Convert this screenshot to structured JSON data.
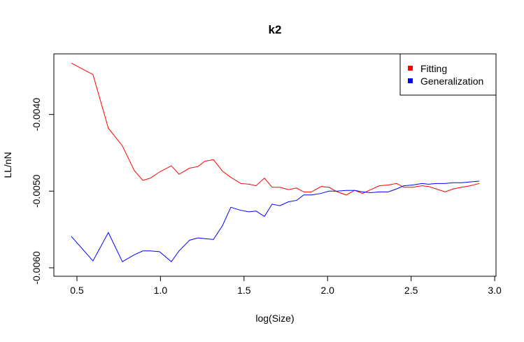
{
  "chart_data": {
    "type": "line",
    "title": "k2",
    "x_label": "log(Size)",
    "y_label": "LL/nN",
    "x": [
      0.466,
      0.596,
      0.688,
      0.772,
      0.843,
      0.894,
      0.94,
      0.994,
      1.065,
      1.111,
      1.174,
      1.224,
      1.266,
      1.317,
      1.371,
      1.421,
      1.48,
      1.53,
      1.572,
      1.622,
      1.668,
      1.714,
      1.765,
      1.815,
      1.857,
      1.903,
      1.961,
      2.008,
      2.058,
      2.112,
      2.162,
      2.209,
      2.259,
      2.309,
      2.363,
      2.414,
      2.456,
      2.51,
      2.564,
      2.606,
      2.648,
      2.703,
      2.753,
      2.803,
      2.853,
      2.908
    ],
    "series": [
      {
        "name": "Fitting",
        "color": "#ff0000",
        "values": [
          -0.00333,
          -0.00348,
          -0.00418,
          -0.00441,
          -0.00473,
          -0.00486,
          -0.00483,
          -0.00475,
          -0.00467,
          -0.00478,
          -0.0047,
          -0.00468,
          -0.00461,
          -0.00459,
          -0.00474,
          -0.00482,
          -0.0049,
          -0.00491,
          -0.00493,
          -0.00483,
          -0.00495,
          -0.00495,
          -0.00498,
          -0.00496,
          -0.00501,
          -0.00501,
          -0.00494,
          -0.00495,
          -0.00501,
          -0.00505,
          -0.00499,
          -0.00503,
          -0.00498,
          -0.00493,
          -0.00492,
          -0.0049,
          -0.00495,
          -0.00495,
          -0.00493,
          -0.00494,
          -0.00497,
          -0.00501,
          -0.00497,
          -0.00495,
          -0.00493,
          -0.0049
        ]
      },
      {
        "name": "Generalization",
        "color": "#0000ff",
        "values": [
          -0.00559,
          -0.00591,
          -0.00554,
          -0.00592,
          -0.00583,
          -0.00578,
          -0.00578,
          -0.00579,
          -0.00592,
          -0.00578,
          -0.00564,
          -0.00561,
          -0.00562,
          -0.00563,
          -0.00545,
          -0.00521,
          -0.00525,
          -0.00527,
          -0.00526,
          -0.00533,
          -0.00517,
          -0.00519,
          -0.00514,
          -0.00512,
          -0.00505,
          -0.00505,
          -0.00503,
          -0.005,
          -0.005,
          -0.00499,
          -0.00499,
          -0.00501,
          -0.00502,
          -0.00501,
          -0.00501,
          -0.00497,
          -0.00493,
          -0.00492,
          -0.0049,
          -0.00491,
          -0.0049,
          -0.0049,
          -0.00489,
          -0.00489,
          -0.00488,
          -0.00487
        ]
      }
    ],
    "xlim": [
      0.362,
      3.008
    ],
    "ylim": [
      -0.00611,
      -0.00321
    ],
    "xticks": [
      0.5,
      {
        "value": 1,
        "label": "1.0"
      },
      1.5,
      {
        "value": 2,
        "label": "2.0"
      },
      2.5,
      {
        "value": 3,
        "label": "3.0"
      }
    ],
    "yticks": [
      {
        "value": -0.006,
        "label": "-0.0060"
      },
      {
        "value": -0.005,
        "label": "-0.0050"
      },
      {
        "value": -0.004,
        "label": "-0.0040"
      }
    ],
    "legend": "top-right"
  }
}
